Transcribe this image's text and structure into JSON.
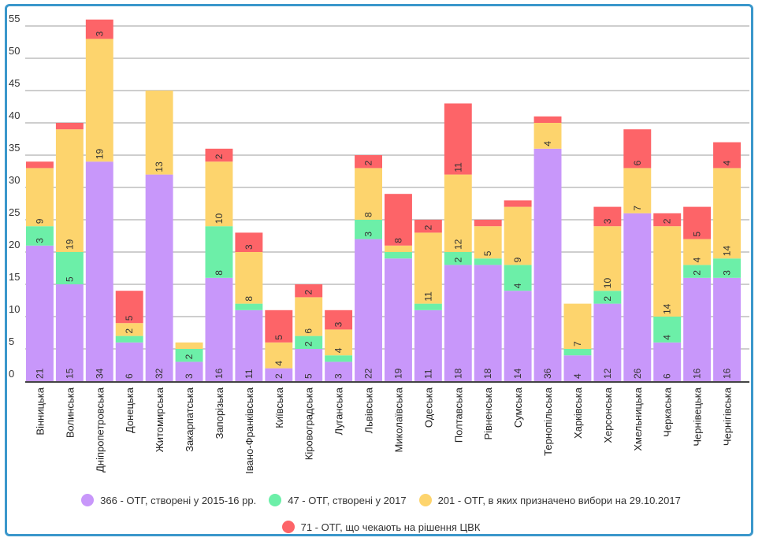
{
  "chart_data": {
    "type": "bar",
    "stacked": true,
    "title": "",
    "xlabel": "",
    "ylabel": "",
    "ylim": [
      0,
      55
    ],
    "yticks": [
      0,
      5,
      10,
      15,
      20,
      25,
      30,
      35,
      40,
      45,
      50,
      55
    ],
    "grid": true,
    "legend_position": "bottom",
    "categories": [
      "Вінницька",
      "Волинська",
      "Дніпропетровська",
      "Донецька",
      "Житомирська",
      "Закарпатська",
      "Запорізька",
      "Івано-Франківська",
      "Київська",
      "Кіровоградська",
      "Луганська",
      "Львівська",
      "Миколаївська",
      "Одеська",
      "Полтавська",
      "Рівненська",
      "Сумська",
      "Тернопільська",
      "Харківська",
      "Херсонська",
      "Хмельницька",
      "Черкаська",
      "Чернівецька",
      "Чернігівська"
    ],
    "series": [
      {
        "name": "366 - ОТГ, створені у 2015-16 рр.",
        "color": "#c897fa",
        "values": [
          21,
          15,
          34,
          6,
          32,
          3,
          16,
          11,
          2,
          5,
          3,
          22,
          19,
          11,
          18,
          18,
          14,
          36,
          4,
          12,
          26,
          6,
          16,
          16
        ],
        "labeled": [
          true,
          true,
          true,
          true,
          true,
          true,
          true,
          true,
          true,
          true,
          true,
          true,
          true,
          true,
          true,
          true,
          true,
          true,
          true,
          true,
          true,
          true,
          true,
          true
        ]
      },
      {
        "name": "47 - ОТГ, створені у 2017",
        "color": "#6cefa8",
        "values": [
          3,
          5,
          0,
          1,
          0,
          2,
          8,
          1,
          0,
          2,
          1,
          3,
          1,
          1,
          2,
          1,
          4,
          0,
          1,
          2,
          0,
          4,
          2,
          3
        ],
        "labeled": [
          true,
          true,
          false,
          false,
          false,
          true,
          true,
          false,
          false,
          true,
          false,
          true,
          false,
          false,
          true,
          false,
          true,
          false,
          false,
          true,
          false,
          true,
          true,
          true
        ]
      },
      {
        "name": "201 - ОТГ, в яких призначено вибори на 29.10.2017",
        "color": "#fdd46d",
        "values": [
          9,
          19,
          19,
          2,
          13,
          1,
          10,
          8,
          4,
          6,
          4,
          8,
          1,
          11,
          12,
          5,
          9,
          4,
          7,
          10,
          7,
          14,
          4,
          14
        ],
        "labeled": [
          true,
          true,
          true,
          true,
          true,
          false,
          true,
          true,
          true,
          true,
          true,
          true,
          false,
          true,
          true,
          true,
          true,
          true,
          true,
          true,
          true,
          true,
          true,
          true
        ]
      },
      {
        "name": "71 - ОТГ, що чекають на рішення ЦВК",
        "color": "#fd6468",
        "values": [
          1,
          1,
          3,
          5,
          0,
          0,
          2,
          3,
          5,
          2,
          3,
          2,
          8,
          2,
          11,
          1,
          1,
          1,
          0,
          3,
          6,
          2,
          5,
          4
        ],
        "labeled": [
          false,
          false,
          true,
          true,
          false,
          false,
          true,
          true,
          true,
          true,
          true,
          true,
          true,
          true,
          true,
          false,
          false,
          false,
          false,
          true,
          true,
          true,
          true,
          true
        ]
      }
    ]
  },
  "legend": {
    "items": [
      {
        "label": "366 - ОТГ, створені у 2015-16 рр.",
        "color": "#c897fa"
      },
      {
        "label": "47 - ОТГ, створені у 2017",
        "color": "#6cefa8"
      },
      {
        "label": "201 - ОТГ, в яких призначено вибори на 29.10.2017",
        "color": "#fdd46d"
      },
      {
        "label": "71 - ОТГ, що чекають на рішення ЦВК",
        "color": "#fd6468"
      }
    ]
  }
}
